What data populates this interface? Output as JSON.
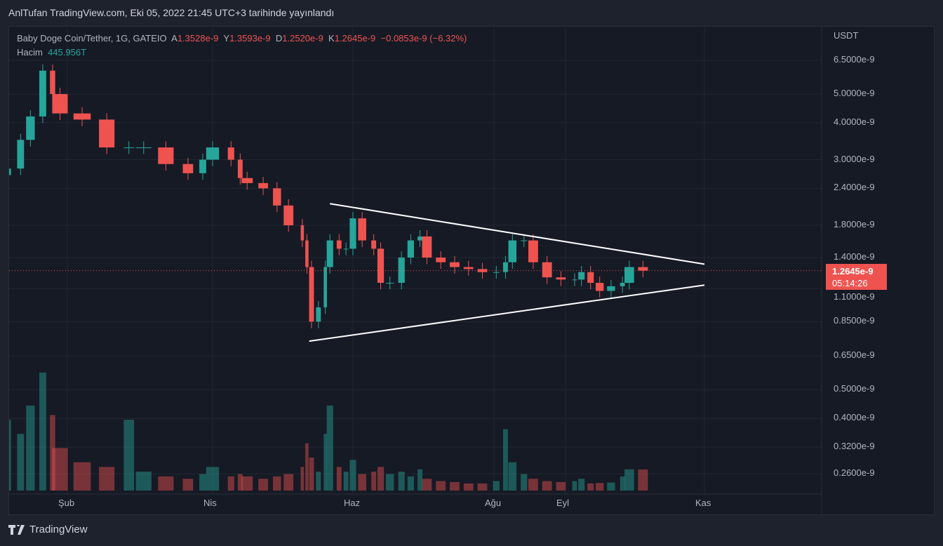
{
  "header": {
    "published": "AnlTufan TradingView.com, Eki 05, 2022 21:45 UTC+3 tarihinde yayınlandı"
  },
  "legend": {
    "symbol": "Baby Doge Coin/Tether, 1G, GATEIO",
    "open_label": "A",
    "open": "1.3528e-9",
    "high_label": "Y",
    "high": "1.3593e-9",
    "low_label": "D",
    "low": "1.2520e-9",
    "close_label": "K",
    "close": "1.2645e-9",
    "change": "−0.0853e-9 (−6.32%)",
    "volume_label": "Hacim",
    "volume": "445.956T"
  },
  "price_badge": {
    "price": "1.2645e-9",
    "countdown": "05:14:26"
  },
  "footer": {
    "brand": "TradingView"
  },
  "colors": {
    "up": "#26a69a",
    "down": "#ef5350",
    "trendline": "#ffffff"
  },
  "chart_data": {
    "type": "candlestick",
    "currency": "USDT",
    "yscale": "log",
    "ylim": [
      0.24,
      7.2
    ],
    "yunit": "e-9",
    "ytick_labels": [
      "6.5000e-9",
      "5.0000e-9",
      "4.0000e-9",
      "3.0000e-9",
      "2.4000e-9",
      "1.8000e-9",
      "1.4000e-9",
      "1.1000e-9",
      "0.8500e-9",
      "0.6500e-9",
      "0.5000e-9",
      "0.4000e-9",
      "0.3200e-9",
      "0.2600e-9"
    ],
    "yticks": [
      6.5,
      5,
      4,
      3,
      2.4,
      1.8,
      1.4,
      1.1,
      0.85,
      0.65,
      0.5,
      0.4,
      0.32,
      0.26
    ],
    "xtick_labels": [
      "Şub",
      "Nis",
      "Haz",
      "Ağu",
      "Eyl",
      "Kas"
    ],
    "xticks": [
      "2022-02-01",
      "2022-04-01",
      "2022-06-01",
      "2022-08-01",
      "2022-09-01",
      "2022-11-01"
    ],
    "grid": true,
    "series": [
      [
        "2022-01-07",
        2.8,
        1500
      ],
      [
        "2022-01-13",
        3.5,
        1200
      ],
      [
        "2022-01-17",
        4.2,
        1800
      ],
      [
        "2022-01-22",
        6.0,
        2500
      ],
      [
        "2022-01-26",
        5.0,
        1600
      ],
      [
        "2022-01-29",
        4.3,
        900
      ],
      [
        "2022-02-07",
        4.1,
        600
      ],
      [
        "2022-02-17",
        3.3,
        500
      ],
      [
        "2022-02-26",
        3.3,
        1500
      ],
      [
        "2022-03-04",
        3.3,
        400
      ],
      [
        "2022-03-13",
        2.9,
        300
      ],
      [
        "2022-03-22",
        2.7,
        250
      ],
      [
        "2022-03-28",
        3.0,
        350
      ],
      [
        "2022-04-01",
        3.3,
        500
      ],
      [
        "2022-04-09",
        3.0,
        300
      ],
      [
        "2022-04-13",
        2.6,
        350
      ],
      [
        "2022-04-16",
        2.5,
        300
      ],
      [
        "2022-04-23",
        2.4,
        250
      ],
      [
        "2022-04-29",
        2.1,
        300
      ],
      [
        "2022-05-04",
        1.8,
        350
      ],
      [
        "2022-05-10",
        1.6,
        500
      ],
      [
        "2022-05-12",
        1.3,
        1000
      ],
      [
        "2022-05-14",
        0.85,
        700
      ],
      [
        "2022-05-17",
        0.95,
        400
      ],
      [
        "2022-05-20",
        1.3,
        1200
      ],
      [
        "2022-05-22",
        1.6,
        1800
      ],
      [
        "2022-05-26",
        1.5,
        500
      ],
      [
        "2022-05-29",
        1.5,
        400
      ],
      [
        "2022-06-01",
        1.9,
        650
      ],
      [
        "2022-06-05",
        1.6,
        350
      ],
      [
        "2022-06-10",
        1.5,
        400
      ],
      [
        "2022-06-13",
        1.15,
        500
      ],
      [
        "2022-06-17",
        1.15,
        350
      ],
      [
        "2022-06-22",
        1.4,
        400
      ],
      [
        "2022-06-26",
        1.6,
        300
      ],
      [
        "2022-06-30",
        1.65,
        450
      ],
      [
        "2022-07-03",
        1.4,
        250
      ],
      [
        "2022-07-09",
        1.35,
        200
      ],
      [
        "2022-07-15",
        1.3,
        180
      ],
      [
        "2022-07-21",
        1.28,
        150
      ],
      [
        "2022-07-27",
        1.25,
        150
      ],
      [
        "2022-08-02",
        1.25,
        200
      ],
      [
        "2022-08-06",
        1.35,
        1300
      ],
      [
        "2022-08-09",
        1.6,
        600
      ],
      [
        "2022-08-14",
        1.6,
        350
      ],
      [
        "2022-08-18",
        1.35,
        250
      ],
      [
        "2022-08-24",
        1.2,
        200
      ],
      [
        "2022-08-30",
        1.18,
        180
      ],
      [
        "2022-09-05",
        1.18,
        200
      ],
      [
        "2022-09-08",
        1.25,
        250
      ],
      [
        "2022-09-12",
        1.15,
        150
      ],
      [
        "2022-09-16",
        1.08,
        160
      ],
      [
        "2022-09-21",
        1.12,
        170
      ],
      [
        "2022-09-26",
        1.15,
        300
      ],
      [
        "2022-09-29",
        1.3,
        450
      ],
      [
        "2022-10-05",
        1.2645,
        445.956
      ]
    ],
    "series_fields": [
      "date",
      "close",
      "volume_T"
    ],
    "trendlines": [
      {
        "from": [
          "2022-05-22",
          2.13
        ],
        "to": [
          "2022-11-01",
          1.33
        ]
      },
      {
        "from": [
          "2022-05-13",
          0.73
        ],
        "to": [
          "2022-11-01",
          1.13
        ]
      }
    ]
  }
}
